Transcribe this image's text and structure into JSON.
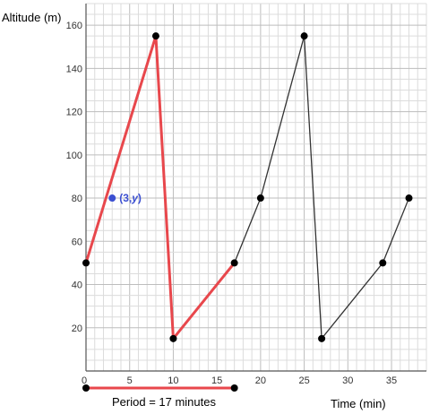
{
  "chart_data": {
    "type": "line",
    "xlabel": "Time (min)",
    "ylabel": "Altitude (m)",
    "xlim": [
      0,
      39
    ],
    "ylim": [
      0,
      170
    ],
    "x_ticks": [
      5,
      10,
      15,
      20,
      25,
      30,
      35
    ],
    "y_ticks": [
      20,
      40,
      60,
      80,
      100,
      120,
      140,
      160
    ],
    "grid": true,
    "series": [
      {
        "x": [
          0,
          8,
          10,
          17,
          20,
          25,
          27,
          34,
          37
        ],
        "y": [
          50,
          155,
          15,
          50,
          80,
          155,
          15,
          50,
          80
        ],
        "color": "#333333"
      }
    ],
    "highlighted_period": {
      "x": [
        0,
        8,
        10,
        17
      ],
      "y": [
        50,
        155,
        15,
        50
      ],
      "color": "#e8474c"
    },
    "annotated_point": {
      "x": 3,
      "y": 80,
      "label_main": "(3,",
      "label_var": "y",
      "label_close": ")",
      "color": "#3b4fd1"
    },
    "period": {
      "x_start": 0,
      "x_end": 17,
      "label": "Period = 17 minutes",
      "color": "#e8474c"
    }
  }
}
